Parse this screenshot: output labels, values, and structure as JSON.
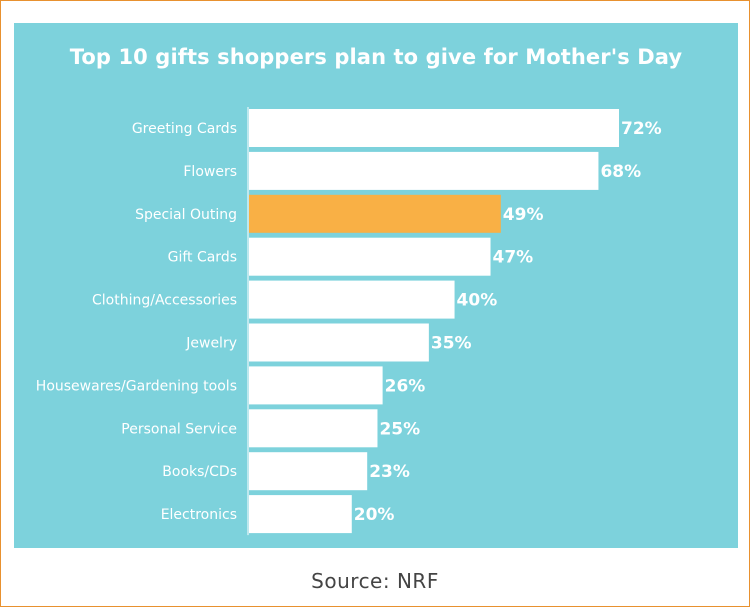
{
  "colors": {
    "panel_bg": "#7dd2dc",
    "bar_default": "#ffffff",
    "bar_highlight": "#f9b045",
    "text_on_panel": "#ffffff",
    "caption_text": "#444444",
    "frame_border": "#e8912f"
  },
  "source_caption": "Source: NRF",
  "chart_data": {
    "type": "bar",
    "orientation": "horizontal",
    "title": "Top 10 gifts shoppers plan to give for Mother's Day",
    "xlabel": "",
    "ylabel": "",
    "unit": "%",
    "xlim": [
      0,
      72
    ],
    "grid": false,
    "legend": "none",
    "categories": [
      "Greeting Cards",
      "Flowers",
      "Special Outing",
      "Gift Cards",
      "Clothing/Accessories",
      "Jewelry",
      "Housewares/Gardening tools",
      "Personal Service",
      "Books/CDs",
      "Electronics"
    ],
    "values": [
      72,
      68,
      49,
      47,
      40,
      35,
      26,
      25,
      23,
      20
    ],
    "value_labels": [
      "72%",
      "68%",
      "49%",
      "47%",
      "40%",
      "35%",
      "26%",
      "25%",
      "23%",
      "20%"
    ],
    "highlighted_category": "Special Outing"
  }
}
